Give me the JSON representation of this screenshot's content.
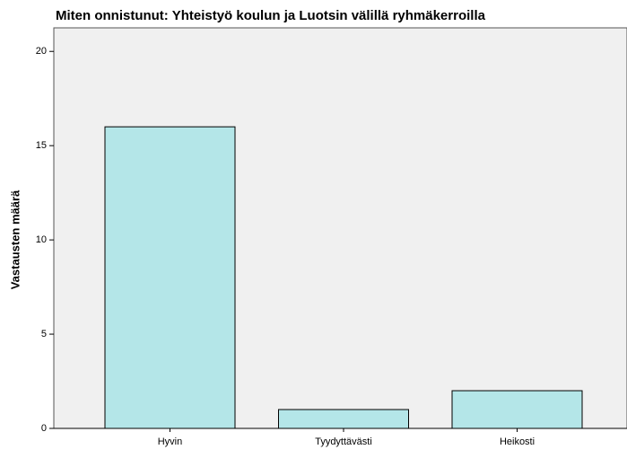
{
  "chart_data": {
    "type": "bar",
    "title": "Miten onnistunut: Yhteistyö koulun ja Luotsin välillä ryhmäkerroilla",
    "y_label": "Vastausten määrä",
    "categories": [
      "Hyvin",
      "Tyydyttävästi",
      "Heikosti"
    ],
    "values": [
      16,
      1,
      2
    ],
    "color": "#b4e6e8",
    "ylim": [
      0,
      21.25
    ],
    "yticks": [
      0,
      5,
      10,
      15,
      20
    ],
    "grid": false
  }
}
